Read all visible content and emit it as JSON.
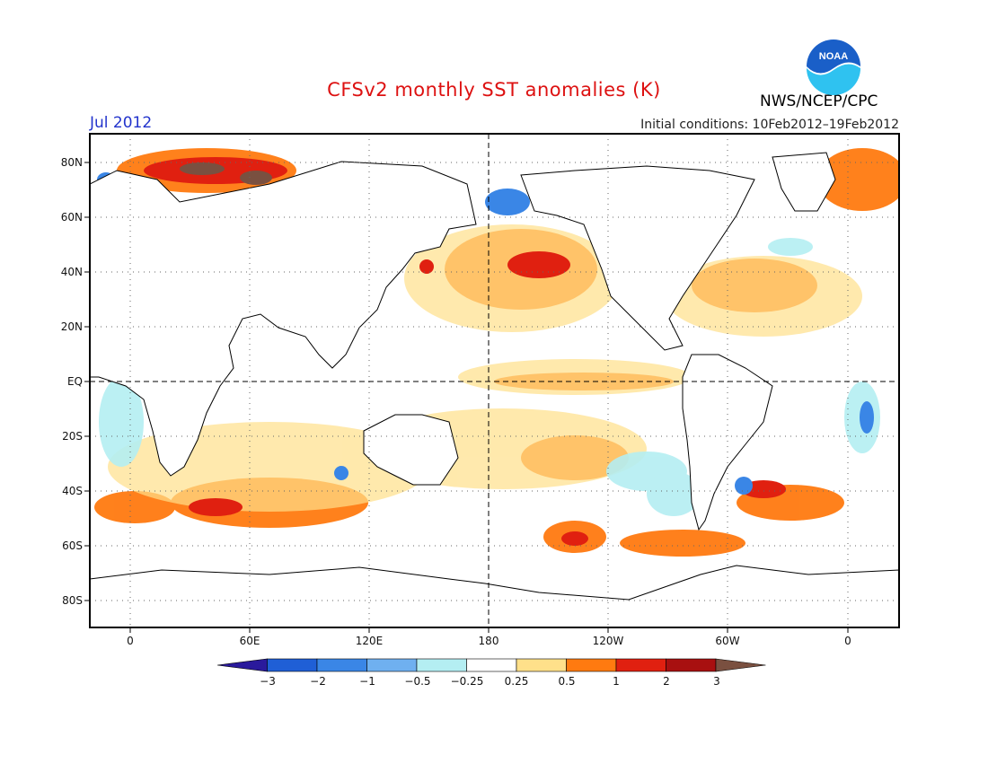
{
  "header": {
    "title": "CFSv2 monthly SST anomalies (K)",
    "month": "Jul 2012",
    "initial_conditions": "Initial conditions: 10Feb2012–19Feb2012",
    "agency": "NWS/NCEP/CPC",
    "logo_text": "NOAA"
  },
  "map": {
    "lat_labels": [
      "80N",
      "60N",
      "40N",
      "20N",
      "EQ",
      "20S",
      "40S",
      "60S",
      "80S"
    ],
    "lon_labels": [
      "0",
      "60E",
      "120E",
      "180",
      "120W",
      "60W",
      "0"
    ]
  },
  "colorbar": {
    "labels": [
      "−3",
      "−2",
      "−1",
      "−0.5",
      "−0.25",
      "0.25",
      "0.5",
      "1",
      "2",
      "3"
    ],
    "colors": [
      "#2a1a9c",
      "#1f5fd6",
      "#3a86e6",
      "#6fb0f0",
      "#b4eef2",
      "#ffffff",
      "#ffe08a",
      "#ff7a10",
      "#e02010",
      "#a81010",
      "#7a5040"
    ]
  }
}
